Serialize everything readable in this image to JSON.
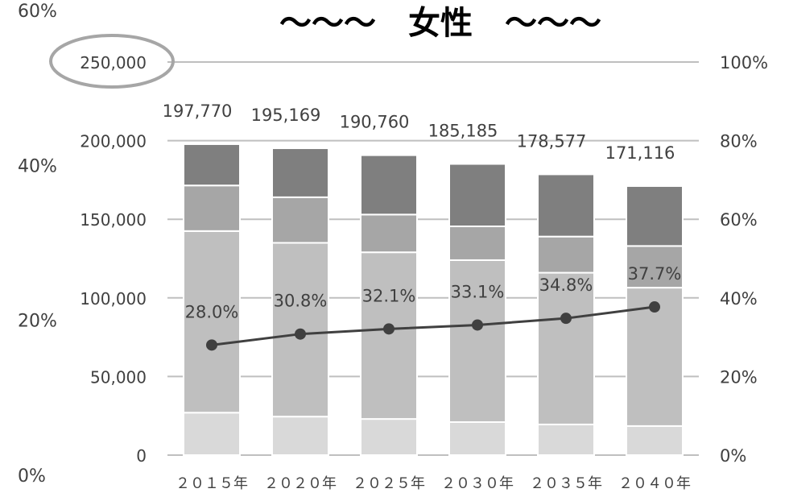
{
  "chart_data": {
    "type": "bar",
    "title": "〜〜〜　女性　〜〜〜",
    "categories": [
      "２０１５年",
      "２０２０年",
      "２０２５年",
      "２０３０年",
      "２０３５年",
      "２０４０年"
    ],
    "totals": [
      197770,
      195169,
      190760,
      185185,
      178577,
      171116
    ],
    "total_labels": [
      "197,770",
      "195,169",
      "190,760",
      "185,185",
      "178,577",
      "171,116"
    ],
    "stacks": [
      {
        "values": [
          27000,
          24500,
          23000,
          21000,
          19500,
          18500
        ],
        "color": "#d9d9d9"
      },
      {
        "values": [
          115500,
          110500,
          106000,
          103000,
          96500,
          88000
        ],
        "color": "#bfbfbf"
      },
      {
        "values": [
          29000,
          29000,
          24000,
          21500,
          23000,
          26500
        ],
        "color": "#a6a6a6"
      },
      {
        "values": [
          26270,
          31169,
          37760,
          39685,
          39577,
          38116
        ],
        "color": "#7f7f7f"
      }
    ],
    "line": {
      "values": [
        28.0,
        30.8,
        32.1,
        33.1,
        34.8,
        37.7
      ],
      "labels": [
        "28.0%",
        "30.8%",
        "32.1%",
        "33.1%",
        "34.8%",
        "37.7%"
      ],
      "color": "#404040"
    },
    "left_axis": {
      "ylim": [
        0,
        250000
      ],
      "ticks": [
        0,
        50000,
        100000,
        150000,
        200000,
        250000
      ],
      "tick_labels": [
        "0",
        "50,000",
        "100,000",
        "150,000",
        "200,000",
        "250,000"
      ]
    },
    "right_axis": {
      "ylim": [
        0,
        100
      ],
      "ticks": [
        0,
        20,
        40,
        60,
        80,
        100
      ],
      "tick_labels": [
        "0%",
        "20%",
        "40%",
        "60%",
        "80%",
        "100%"
      ]
    },
    "outer_axis": {
      "ylim": [
        0,
        60
      ],
      "ticks": [
        0,
        20,
        40,
        60
      ],
      "tick_labels": [
        "0%",
        "20%",
        "40%",
        "60%"
      ]
    },
    "highlighted_tick": "250,000",
    "grid": true,
    "legend": "none"
  }
}
